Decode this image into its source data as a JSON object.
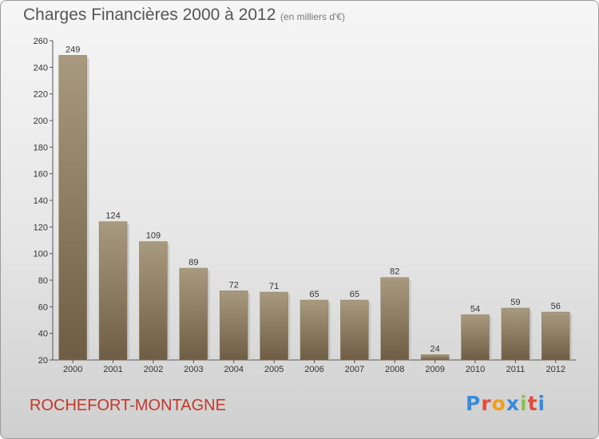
{
  "header": {
    "title": "Charges Financières 2000 à 2012",
    "unit": "(en milliers d'€)"
  },
  "footer": {
    "commune": "ROCHEFORT-MONTAGNE",
    "brand": "Proxiti",
    "brand_letters": [
      {
        "ch": "P",
        "color": "#3b8ad8"
      },
      {
        "ch": "r",
        "color": "#e34b3a"
      },
      {
        "ch": "o",
        "color": "#f0a020"
      },
      {
        "ch": "x",
        "color": "#3b8ad8"
      },
      {
        "ch": "i",
        "color": "#8bc34a"
      },
      {
        "ch": "t",
        "color": "#e34b3a"
      },
      {
        "ch": "i",
        "color": "#3b8ad8"
      }
    ]
  },
  "colors": {
    "bar_top": "#a89a7f",
    "bar_bottom": "#6e5d44",
    "title": "#555555",
    "commune": "#c0392b"
  },
  "chart_data": {
    "type": "bar",
    "title": "Charges Financières 2000 à 2012",
    "subtitle": "(en milliers d'€)",
    "xlabel": "",
    "ylabel": "",
    "categories": [
      "2000",
      "2001",
      "2002",
      "2003",
      "2004",
      "2005",
      "2006",
      "2007",
      "2008",
      "2009",
      "2010",
      "2011",
      "2012"
    ],
    "values": [
      249,
      124,
      109,
      89,
      72,
      71,
      65,
      65,
      82,
      24,
      54,
      59,
      56
    ],
    "ylim": [
      20,
      260
    ],
    "yticks": [
      20,
      40,
      60,
      80,
      100,
      120,
      140,
      160,
      180,
      200,
      220,
      240,
      260
    ],
    "grid": false,
    "legend": "none"
  }
}
